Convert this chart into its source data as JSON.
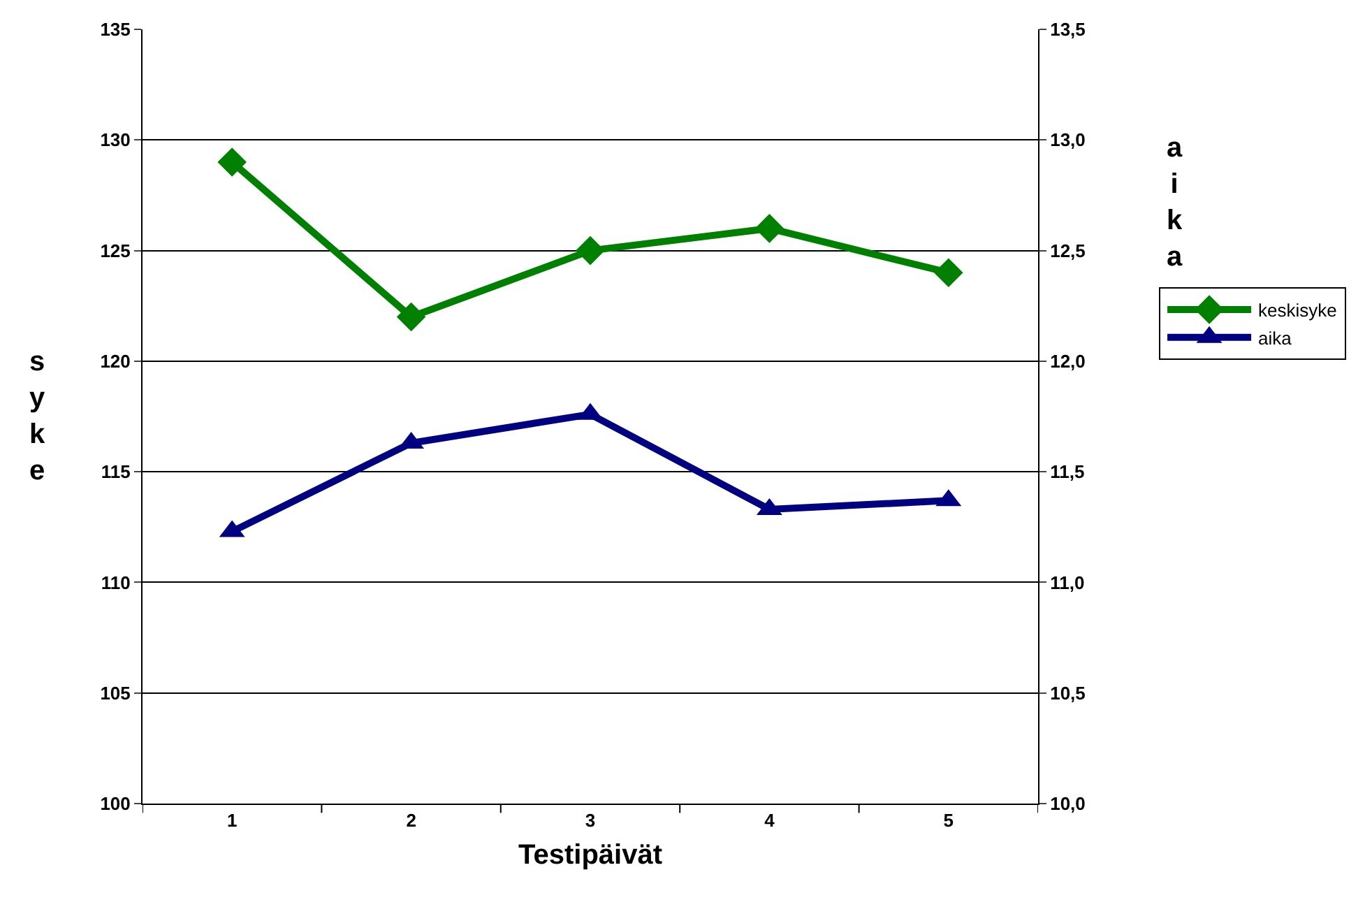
{
  "chart_data": {
    "type": "line",
    "xlabel": "Testipäivät",
    "ylabel": "s\ny\nk\ne",
    "y2label": "a\ni\nk\na",
    "categories": [
      "1",
      "2",
      "3",
      "4",
      "5"
    ],
    "series": [
      {
        "name": "keskisyke",
        "color": "#008000",
        "values": [
          129,
          122,
          125,
          126,
          124
        ],
        "marker": "diamond"
      },
      {
        "name": "aika",
        "color": "#000080",
        "values": [
          11.23,
          11.63,
          11.76,
          11.33,
          11.37
        ],
        "axis": "y2",
        "marker": "triangle"
      }
    ],
    "ylim": [
      100,
      135
    ],
    "yticks": [
      100,
      105,
      110,
      115,
      120,
      125,
      130,
      135
    ],
    "y2lim": [
      10.0,
      13.5
    ],
    "y2ticks": [
      {
        "value": 10.0,
        "label": "10,0"
      },
      {
        "value": 10.5,
        "label": "10,5"
      },
      {
        "value": 11.0,
        "label": "11,0"
      },
      {
        "value": 11.5,
        "label": "11,5"
      },
      {
        "value": 12.0,
        "label": "12,0"
      },
      {
        "value": 12.5,
        "label": "12,5"
      },
      {
        "value": 13.0,
        "label": "13,0"
      },
      {
        "value": 13.5,
        "label": "13,5"
      }
    ],
    "grid": "y",
    "legend": "right",
    "line_style": "solid"
  }
}
